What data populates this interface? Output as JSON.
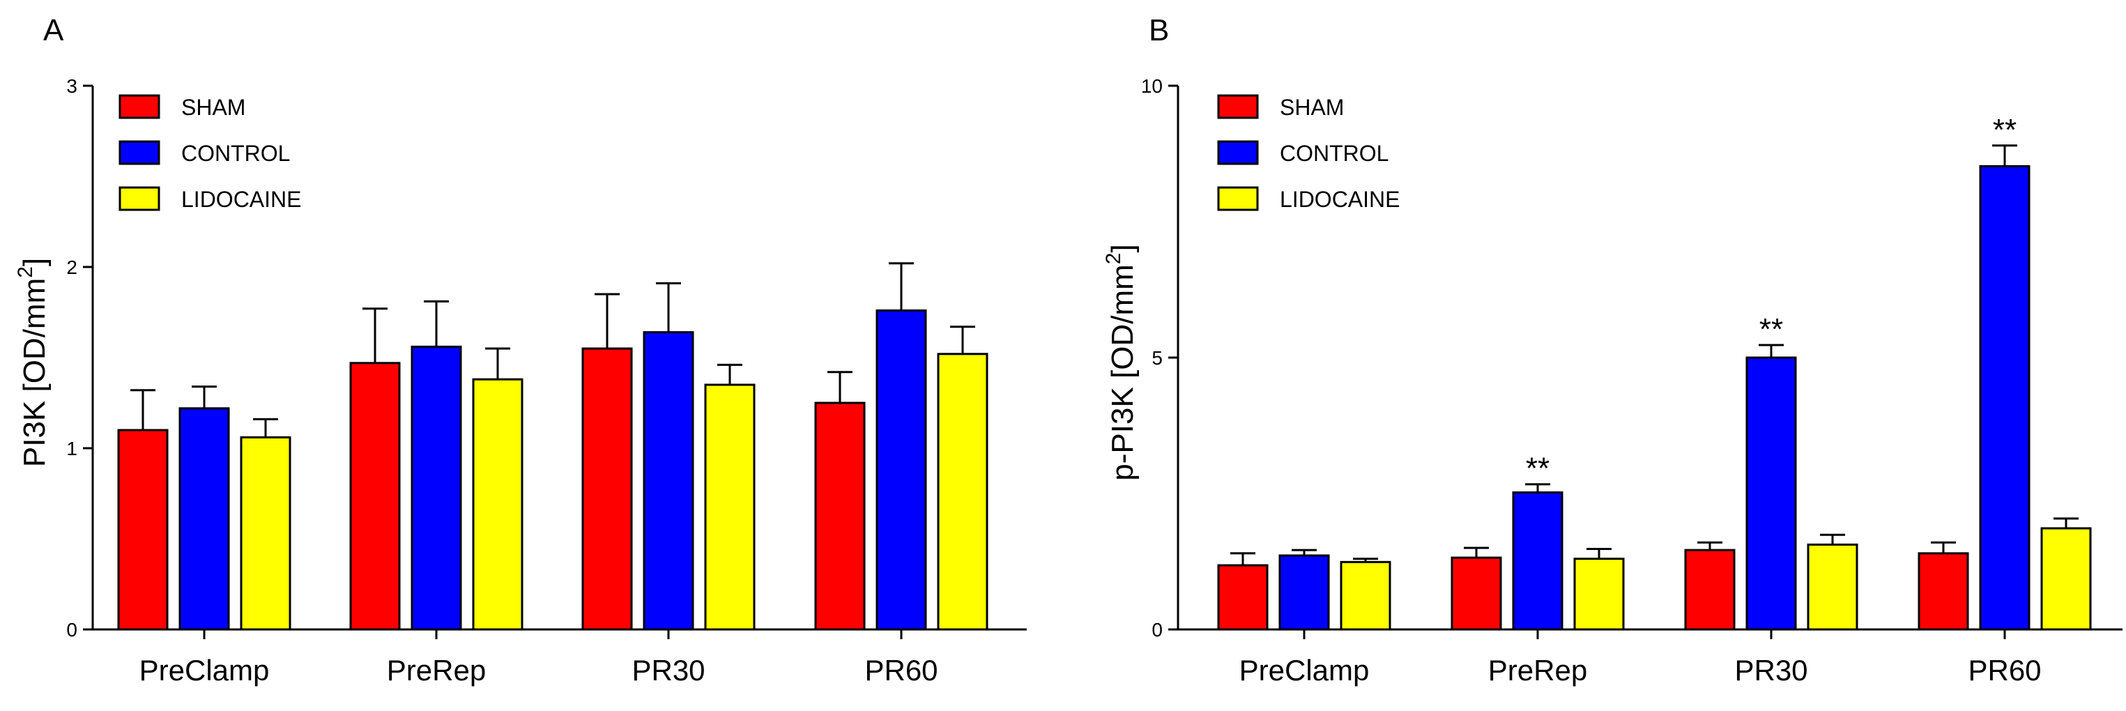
{
  "chart_data": [
    {
      "panel": "A",
      "type": "bar",
      "ylabel": "PI3K [OD/mm",
      "ylabel_sup": "2",
      "ylabel_end": "]",
      "ylim": [
        0,
        3
      ],
      "yticks": [
        0,
        1,
        2,
        3
      ],
      "grid": false,
      "legend_position": "top-left",
      "categories": [
        "PreClamp",
        "PreRep",
        "PR30",
        "PR60"
      ],
      "series": [
        {
          "name": "SHAM",
          "color": "#ff0000",
          "values": [
            1.1,
            1.47,
            1.55,
            1.25
          ],
          "errors": [
            0.22,
            0.3,
            0.3,
            0.17
          ],
          "sig": [
            "",
            "",
            "",
            ""
          ]
        },
        {
          "name": "CONTROL",
          "color": "#0000ff",
          "values": [
            1.22,
            1.56,
            1.64,
            1.76
          ],
          "errors": [
            0.12,
            0.25,
            0.27,
            0.26
          ],
          "sig": [
            "",
            "",
            "",
            ""
          ]
        },
        {
          "name": "LIDOCAINE",
          "color": "#ffff00",
          "values": [
            1.06,
            1.38,
            1.35,
            1.52
          ],
          "errors": [
            0.1,
            0.17,
            0.11,
            0.15
          ],
          "sig": [
            "",
            "",
            "",
            ""
          ]
        }
      ]
    },
    {
      "panel": "B",
      "type": "bar",
      "ylabel": "p-PI3K [OD/mm",
      "ylabel_sup": "2",
      "ylabel_end": "]",
      "ylim": [
        0,
        10
      ],
      "yticks": [
        0,
        5,
        10
      ],
      "grid": false,
      "legend_position": "top-left",
      "categories": [
        "PreClamp",
        "PreRep",
        "PR30",
        "PR60"
      ],
      "series": [
        {
          "name": "SHAM",
          "color": "#ff0000",
          "values": [
            1.18,
            1.32,
            1.46,
            1.4
          ],
          "errors": [
            0.22,
            0.18,
            0.14,
            0.2
          ],
          "sig": [
            "",
            "",
            "",
            ""
          ]
        },
        {
          "name": "CONTROL",
          "color": "#0000ff",
          "values": [
            1.36,
            2.52,
            5.0,
            8.52
          ],
          "errors": [
            0.1,
            0.15,
            0.23,
            0.38
          ],
          "sig": [
            "",
            "**",
            "**",
            "**"
          ]
        },
        {
          "name": "LIDOCAINE",
          "color": "#ffff00",
          "values": [
            1.24,
            1.3,
            1.56,
            1.86
          ],
          "errors": [
            0.06,
            0.18,
            0.18,
            0.18
          ],
          "sig": [
            "",
            "",
            "",
            ""
          ]
        }
      ]
    }
  ]
}
